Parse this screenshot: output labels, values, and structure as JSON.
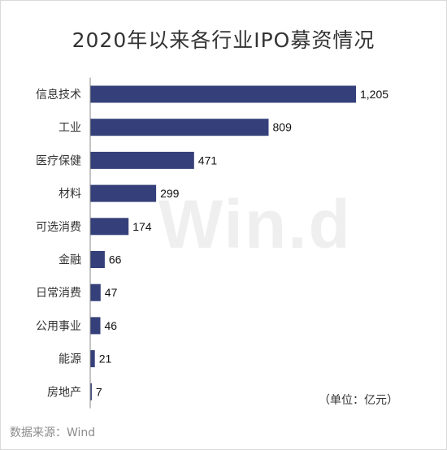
{
  "title": "2020年以来各行业IPO募资情况",
  "watermark": "Win.d",
  "unit_note": "（单位：亿元）",
  "source": "数据来源：Wind",
  "colors": {
    "bar": "#35407a",
    "axis": "#888888",
    "text": "#333333"
  },
  "chart_data": {
    "type": "bar",
    "orientation": "horizontal",
    "categories": [
      "信息技术",
      "工业",
      "医疗保健",
      "材料",
      "可选消费",
      "金融",
      "日常消费",
      "公用事业",
      "能源",
      "房地产"
    ],
    "values": [
      1205,
      809,
      471,
      299,
      174,
      66,
      47,
      46,
      21,
      7
    ],
    "value_labels": [
      "1,205",
      "809",
      "471",
      "299",
      "174",
      "66",
      "47",
      "46",
      "21",
      "7"
    ],
    "xlim": [
      0,
      1205
    ],
    "grid": false,
    "legend": "none"
  }
}
